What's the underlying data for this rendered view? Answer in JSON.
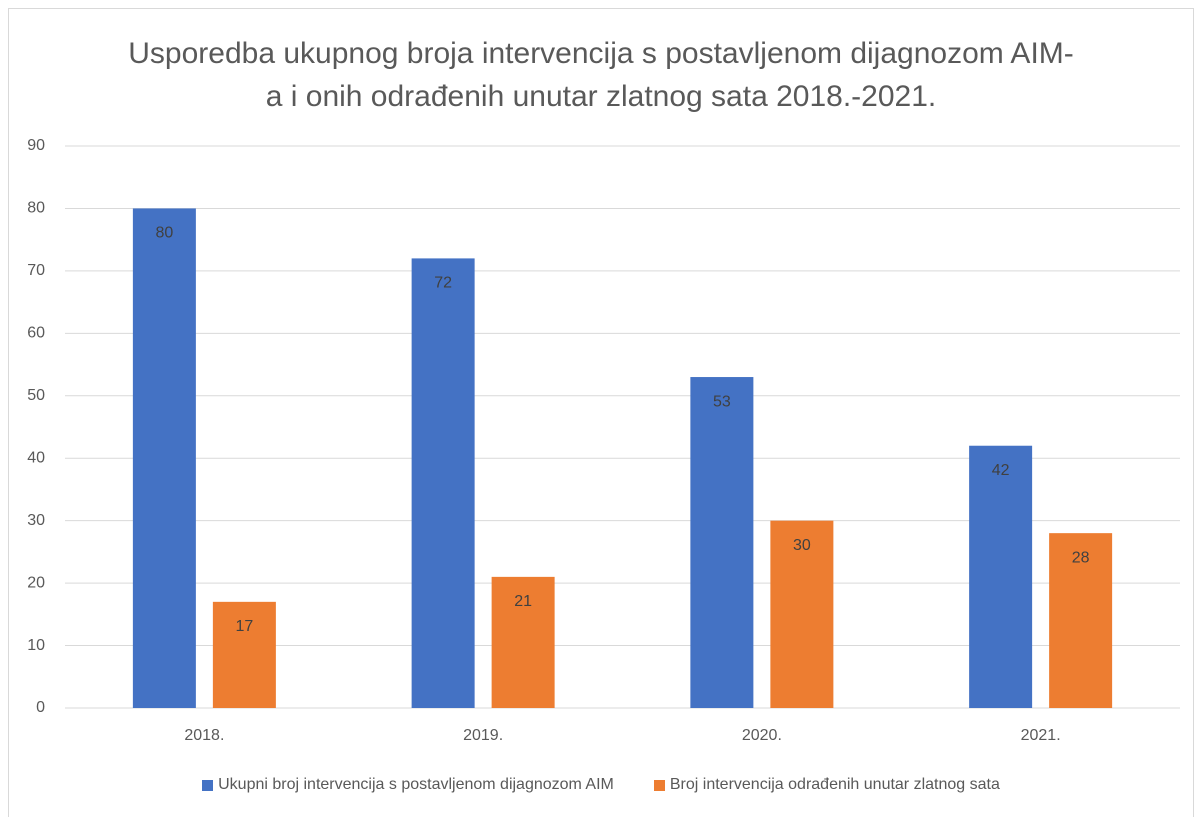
{
  "chart_data": {
    "type": "bar",
    "title": "Usporedba ukupnog broja intervencija s postavljenom dijagnozom AIM-a i onih odrađenih unutar zlatnog sata 2018.-2021.",
    "categories": [
      "2018.",
      "2019.",
      "2020.",
      "2021."
    ],
    "series": [
      {
        "name": "Ukupni broj intervencija s postavljenom dijagnozom AIM",
        "color": "#4472c4",
        "values": [
          80,
          72,
          53,
          42
        ]
      },
      {
        "name": "Broj intervencija odrađenih unutar zlatnog sata",
        "color": "#ed7d31",
        "values": [
          17,
          21,
          30,
          28
        ]
      }
    ],
    "ylim": [
      0,
      90
    ],
    "yticks": [
      0,
      10,
      20,
      30,
      40,
      50,
      60,
      70,
      80,
      90
    ],
    "grid": true,
    "legend": "bottom"
  }
}
